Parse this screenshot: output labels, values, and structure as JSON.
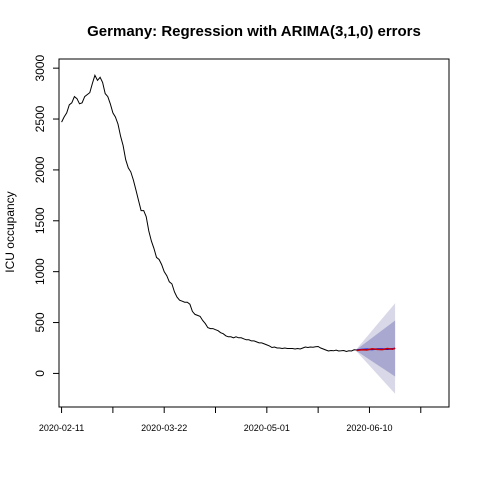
{
  "chart_data": {
    "type": "line",
    "title": "Germany: Regression with ARIMA(3,1,0) errors",
    "xlabel": "",
    "ylabel": "ICU occupancy",
    "xlim": [
      -1,
      151
    ],
    "ylim": [
      -330,
      3090
    ],
    "x_ticks": [
      {
        "x": 0,
        "label": "2020-02-11"
      },
      {
        "x": 20,
        "label": ""
      },
      {
        "x": 40,
        "label": "2020-03-22"
      },
      {
        "x": 60,
        "label": ""
      },
      {
        "x": 80,
        "label": "2020-05-01"
      },
      {
        "x": 100,
        "label": ""
      },
      {
        "x": 120,
        "label": "2020-06-10"
      },
      {
        "x": 140,
        "label": ""
      }
    ],
    "y_ticks": [
      0,
      500,
      1000,
      1500,
      2000,
      2500,
      3000
    ],
    "series": [
      {
        "kind": "observed",
        "color": "#000000",
        "points": [
          [
            0,
            2470
          ],
          [
            1,
            2520
          ],
          [
            2,
            2560
          ],
          [
            3,
            2640
          ],
          [
            4,
            2660
          ],
          [
            5,
            2720
          ],
          [
            6,
            2700
          ],
          [
            7,
            2650
          ],
          [
            8,
            2660
          ],
          [
            9,
            2720
          ],
          [
            10,
            2740
          ],
          [
            11,
            2760
          ],
          [
            12,
            2850
          ],
          [
            13,
            2930
          ],
          [
            14,
            2880
          ],
          [
            15,
            2910
          ],
          [
            16,
            2860
          ],
          [
            17,
            2750
          ],
          [
            18,
            2720
          ],
          [
            19,
            2650
          ],
          [
            20,
            2560
          ],
          [
            21,
            2520
          ],
          [
            22,
            2450
          ],
          [
            23,
            2330
          ],
          [
            24,
            2240
          ],
          [
            25,
            2100
          ],
          [
            26,
            2020
          ],
          [
            27,
            1980
          ],
          [
            28,
            1900
          ],
          [
            29,
            1800
          ],
          [
            30,
            1700
          ],
          [
            31,
            1600
          ],
          [
            32,
            1600
          ],
          [
            33,
            1540
          ],
          [
            34,
            1400
          ],
          [
            35,
            1300
          ],
          [
            36,
            1230
          ],
          [
            37,
            1140
          ],
          [
            38,
            1120
          ],
          [
            39,
            1070
          ],
          [
            40,
            1000
          ],
          [
            41,
            960
          ],
          [
            42,
            900
          ],
          [
            43,
            880
          ],
          [
            44,
            800
          ],
          [
            45,
            750
          ],
          [
            46,
            720
          ],
          [
            47,
            710
          ],
          [
            48,
            700
          ],
          [
            49,
            700
          ],
          [
            50,
            680
          ],
          [
            51,
            610
          ],
          [
            52,
            580
          ],
          [
            53,
            570
          ],
          [
            54,
            560
          ],
          [
            55,
            520
          ],
          [
            56,
            490
          ],
          [
            57,
            450
          ],
          [
            58,
            440
          ],
          [
            59,
            440
          ],
          [
            60,
            430
          ],
          [
            61,
            420
          ],
          [
            62,
            400
          ],
          [
            63,
            390
          ],
          [
            64,
            370
          ],
          [
            65,
            360
          ],
          [
            66,
            360
          ],
          [
            67,
            350
          ],
          [
            68,
            360
          ],
          [
            69,
            350
          ],
          [
            70,
            350
          ],
          [
            71,
            340
          ],
          [
            72,
            330
          ],
          [
            73,
            330
          ],
          [
            74,
            320
          ],
          [
            75,
            320
          ],
          [
            76,
            310
          ],
          [
            77,
            300
          ],
          [
            78,
            300
          ],
          [
            79,
            290
          ],
          [
            80,
            280
          ],
          [
            81,
            270
          ],
          [
            82,
            255
          ],
          [
            83,
            260
          ],
          [
            84,
            250
          ],
          [
            85,
            250
          ],
          [
            86,
            245
          ],
          [
            87,
            250
          ],
          [
            88,
            245
          ],
          [
            89,
            245
          ],
          [
            90,
            245
          ],
          [
            91,
            240
          ],
          [
            92,
            245
          ],
          [
            93,
            240
          ],
          [
            94,
            250
          ],
          [
            95,
            260
          ],
          [
            96,
            255
          ],
          [
            97,
            260
          ],
          [
            98,
            258
          ],
          [
            99,
            262
          ],
          [
            100,
            265
          ],
          [
            101,
            250
          ],
          [
            102,
            240
          ],
          [
            103,
            230
          ],
          [
            104,
            220
          ],
          [
            105,
            225
          ],
          [
            106,
            222
          ],
          [
            107,
            228
          ],
          [
            108,
            220
          ],
          [
            109,
            222
          ],
          [
            110,
            225
          ],
          [
            111,
            215
          ],
          [
            112,
            222
          ],
          [
            113,
            220
          ],
          [
            114,
            232
          ],
          [
            115,
            230
          ]
        ]
      },
      {
        "kind": "forecast-mean",
        "color": "#0000ee",
        "points": [
          [
            115,
            230
          ],
          [
            117,
            235
          ],
          [
            119,
            238
          ],
          [
            121,
            235
          ],
          [
            123,
            240
          ],
          [
            125,
            240
          ],
          [
            127,
            238
          ],
          [
            129,
            243
          ],
          [
            130,
            245
          ]
        ]
      },
      {
        "kind": "overlay",
        "color": "#cc0000",
        "points": [
          [
            115,
            225
          ],
          [
            117,
            232
          ],
          [
            119,
            230
          ],
          [
            121,
            242
          ],
          [
            123,
            236
          ],
          [
            125,
            234
          ],
          [
            127,
            245
          ],
          [
            129,
            238
          ],
          [
            130,
            248
          ]
        ]
      }
    ],
    "intervals": [
      {
        "level": 95,
        "color": "#d8d8e8",
        "lower": [
          [
            115,
            215
          ],
          [
            130,
            -200
          ]
        ],
        "upper": [
          [
            115,
            240
          ],
          [
            130,
            690
          ]
        ]
      },
      {
        "level": 80,
        "color": "#a8a8d0",
        "lower": [
          [
            115,
            220
          ],
          [
            130,
            -30
          ]
        ],
        "upper": [
          [
            115,
            235
          ],
          [
            130,
            520
          ]
        ]
      }
    ],
    "grid": false,
    "legend": "none"
  }
}
